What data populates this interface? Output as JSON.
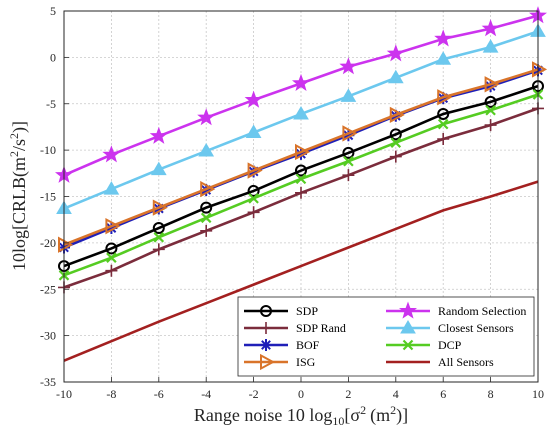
{
  "chart_data": {
    "type": "line",
    "xlabel_prefix": "Range noise 10 log",
    "xlabel_sub": "10",
    "xlabel_bracket_open": "[σ",
    "xlabel_sup": "2",
    "xlabel_units": "(m",
    "xlabel_close": ")]",
    "ylabel_prefix": "10log[CRLB(m",
    "ylabel_sup1": "2",
    "ylabel_mid": "/s",
    "ylabel_sup2": "2",
    "ylabel_close": ")]",
    "x": [
      -10,
      -8,
      -6,
      -4,
      -2,
      0,
      2,
      4,
      6,
      8,
      10
    ],
    "xlim": [
      -10,
      10
    ],
    "ylim": [
      -35,
      5
    ],
    "x_ticks": [
      "-10",
      "-8",
      "-6",
      "-4",
      "-2",
      "0",
      "2",
      "4",
      "6",
      "8",
      "10"
    ],
    "y_ticks": [
      "-35",
      "-30",
      "-25",
      "-20",
      "-15",
      "-10",
      "-5",
      "0",
      "5"
    ],
    "grid": true,
    "legend_position": "bottom-right",
    "series": [
      {
        "name": "SDP",
        "color": "#000000",
        "marker": "circle",
        "values": [
          -22.5,
          -20.6,
          -18.4,
          -16.2,
          -14.4,
          -12.2,
          -10.3,
          -8.3,
          -6.1,
          -4.8,
          -3.1
        ]
      },
      {
        "name": "SDP Rand",
        "color": "#7b2c3c",
        "marker": "plus",
        "values": [
          -24.8,
          -23.0,
          -20.7,
          -18.7,
          -16.7,
          -14.6,
          -12.7,
          -10.7,
          -8.8,
          -7.3,
          -5.5
        ]
      },
      {
        "name": "BOF",
        "color": "#1f1fb8",
        "marker": "asterisk",
        "values": [
          -20.5,
          -18.4,
          -16.3,
          -14.3,
          -12.3,
          -10.4,
          -8.4,
          -6.3,
          -4.4,
          -3.1,
          -1.4
        ]
      },
      {
        "name": "ISG",
        "color": "#d9742a",
        "marker": "triangle-right",
        "values": [
          -20.2,
          -18.2,
          -16.2,
          -14.2,
          -12.2,
          -10.2,
          -8.2,
          -6.2,
          -4.3,
          -2.9,
          -1.3
        ]
      },
      {
        "name": "Random Selection",
        "color": "#cc33ee",
        "marker": "star",
        "values": [
          -12.7,
          -10.5,
          -8.5,
          -6.5,
          -4.6,
          -2.8,
          -1.0,
          0.4,
          2.0,
          3.1,
          4.5
        ]
      },
      {
        "name": "Closest Sensors",
        "color": "#6cc8ee",
        "marker": "triangle-up",
        "values": [
          -16.3,
          -14.2,
          -12.1,
          -10.1,
          -8.1,
          -6.1,
          -4.2,
          -2.2,
          -0.2,
          1.1,
          2.8
        ]
      },
      {
        "name": "DCP",
        "color": "#55cc22",
        "marker": "x",
        "values": [
          -23.5,
          -21.6,
          -19.4,
          -17.3,
          -15.2,
          -13.1,
          -11.2,
          -9.2,
          -7.2,
          -5.7,
          -4.0
        ]
      },
      {
        "name": "All Sensors",
        "color": "#a32020",
        "marker": "none",
        "values": [
          -32.7,
          -30.6,
          -28.5,
          -26.5,
          -24.5,
          -22.5,
          -20.5,
          -18.5,
          -16.5,
          -15.0,
          -13.4
        ]
      }
    ]
  }
}
